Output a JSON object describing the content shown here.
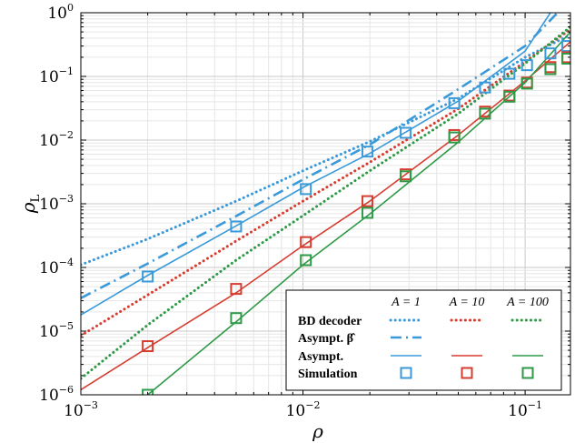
{
  "chart_data": {
    "type": "line",
    "xscale": "log",
    "yscale": "log",
    "xlim": [
      0.001,
      0.16
    ],
    "ylim": [
      1e-06,
      1
    ],
    "xlabel": "ρ",
    "ylabel": "ρ",
    "ylabel_subscript": "L",
    "grid": true,
    "x_ticks": [
      {
        "base": "10",
        "exp": "−3",
        "value": 0.001
      },
      {
        "base": "10",
        "exp": "−2",
        "value": 0.01
      },
      {
        "base": "10",
        "exp": "−1",
        "value": 0.1
      }
    ],
    "y_ticks": [
      {
        "base": "10",
        "exp": "−6",
        "value": 1e-06
      },
      {
        "base": "10",
        "exp": "−5",
        "value": 1e-05
      },
      {
        "base": "10",
        "exp": "−4",
        "value": 0.0001
      },
      {
        "base": "10",
        "exp": "−3",
        "value": 0.001
      },
      {
        "base": "10",
        "exp": "−2",
        "value": 0.01
      },
      {
        "base": "10",
        "exp": "−1",
        "value": 0.1
      },
      {
        "base": "10",
        "exp": "0",
        "value": 1
      }
    ],
    "colors": {
      "A1": "#3a9ad9",
      "A10": "#d63c2f",
      "A100": "#2e9a48"
    },
    "legend": {
      "position": "bottom-right",
      "columns": [
        "A = 1",
        "A = 10",
        "A = 100"
      ],
      "rows": [
        "BD decoder",
        "Asympt. β̂",
        "Asympt.",
        "Simulation"
      ]
    },
    "series": [
      {
        "name": "BD decoder A=1",
        "group": "A1",
        "style": "dotted",
        "x": [
          0.001,
          0.002,
          0.005,
          0.01,
          0.02,
          0.05,
          0.1,
          0.16
        ],
        "y": [
          0.00011,
          0.00028,
          0.0011,
          0.0033,
          0.0095,
          0.045,
          0.2,
          0.45
        ]
      },
      {
        "name": "BD decoder A=10",
        "group": "A10",
        "style": "dotted",
        "x": [
          0.001,
          0.002,
          0.005,
          0.01,
          0.02,
          0.05,
          0.1,
          0.16
        ],
        "y": [
          8.5e-06,
          3.7e-05,
          0.00026,
          0.0011,
          0.0045,
          0.031,
          0.17,
          0.55
        ]
      },
      {
        "name": "BD decoder A=100",
        "group": "A100",
        "style": "dotted",
        "x": [
          0.001,
          0.002,
          0.005,
          0.01,
          0.02,
          0.05,
          0.1,
          0.16
        ],
        "y": [
          1.8e-06,
          1.25e-05,
          0.00013,
          0.00065,
          0.0033,
          0.026,
          0.16,
          0.6
        ]
      },
      {
        "name": "Asympt. beta-hat A=1",
        "group": "A1",
        "style": "dashdot",
        "x": [
          0.001,
          0.002,
          0.005,
          0.01,
          0.02,
          0.05,
          0.1,
          0.14
        ],
        "y": [
          3.3e-05,
          0.000115,
          0.00064,
          0.0024,
          0.0085,
          0.063,
          0.3,
          1
        ]
      },
      {
        "name": "Asympt. A=1",
        "group": "A1",
        "style": "solid",
        "x": [
          0.001,
          0.002,
          0.005,
          0.01,
          0.02,
          0.05,
          0.1,
          0.13
        ],
        "y": [
          1.8e-05,
          7.5e-05,
          0.00045,
          0.0018,
          0.0062,
          0.041,
          0.25,
          1
        ]
      },
      {
        "name": "Asympt. A=10",
        "group": "A10",
        "style": "solid",
        "x": [
          0.001,
          0.002,
          0.005,
          0.01,
          0.02,
          0.05,
          0.1,
          0.16
        ],
        "y": [
          1.2e-06,
          5.5e-06,
          4e-05,
          0.00022,
          0.0011,
          0.012,
          0.085,
          0.35
        ]
      },
      {
        "name": "Asympt. A=100",
        "group": "A100",
        "style": "solid",
        "x": [
          0.002,
          0.005,
          0.01,
          0.02,
          0.05,
          0.1,
          0.16
        ],
        "y": [
          1e-06,
          1.4e-05,
          0.00011,
          0.00069,
          0.0093,
          0.08,
          0.5
        ]
      }
    ],
    "scatter": [
      {
        "name": "Simulation A=1",
        "group": "A1",
        "x": [
          0.002,
          0.005,
          0.0103,
          0.0195,
          0.029,
          0.048,
          0.066,
          0.085,
          0.102,
          0.13,
          0.155
        ],
        "y": [
          7.2e-05,
          0.00044,
          0.0017,
          0.0066,
          0.013,
          0.038,
          0.067,
          0.11,
          0.15,
          0.23,
          0.3
        ]
      },
      {
        "name": "Simulation A=10",
        "group": "A10",
        "x": [
          0.002,
          0.005,
          0.0103,
          0.0195,
          0.029,
          0.048,
          0.066,
          0.085,
          0.102,
          0.13,
          0.155
        ],
        "y": [
          5.8e-06,
          4.6e-05,
          0.00025,
          0.0011,
          0.0029,
          0.012,
          0.028,
          0.05,
          0.08,
          0.14,
          0.2
        ]
      },
      {
        "name": "Simulation A=100",
        "group": "A100",
        "x": [
          0.002,
          0.005,
          0.0103,
          0.0195,
          0.029,
          0.048,
          0.066,
          0.085,
          0.102,
          0.13,
          0.155
        ],
        "y": [
          1e-06,
          1.6e-05,
          0.00013,
          0.00072,
          0.0027,
          0.011,
          0.026,
          0.048,
          0.077,
          0.13,
          0.19
        ]
      }
    ]
  }
}
